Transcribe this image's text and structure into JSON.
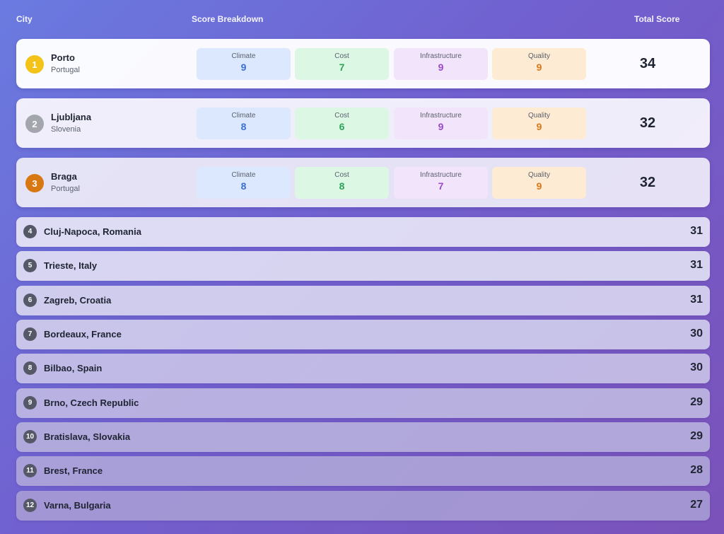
{
  "header": {
    "city": "City",
    "breakdown": "Score Breakdown",
    "total": "Total Score"
  },
  "colors": {
    "gold": "#f3c319",
    "silver": "#a3a6ad",
    "bronze": "#d87813",
    "rank_badge": "#545867"
  },
  "top": [
    {
      "rank": "1",
      "city": "Porto",
      "country": "Portugal",
      "climate_label": "Climate",
      "climate": "9",
      "cost_label": "Cost",
      "cost": "7",
      "infra_label": "Infrastructure",
      "infra": "9",
      "quality_label": "Quality",
      "quality": "9",
      "total": "34"
    },
    {
      "rank": "2",
      "city": "Ljubljana",
      "country": "Slovenia",
      "climate_label": "Climate",
      "climate": "8",
      "cost_label": "Cost",
      "cost": "6",
      "infra_label": "Infrastructure",
      "infra": "9",
      "quality_label": "Quality",
      "quality": "9",
      "total": "32"
    },
    {
      "rank": "3",
      "city": "Braga",
      "country": "Portugal",
      "climate_label": "Climate",
      "climate": "8",
      "cost_label": "Cost",
      "cost": "8",
      "infra_label": "Infrastructure",
      "infra": "7",
      "quality_label": "Quality",
      "quality": "9",
      "total": "32"
    }
  ],
  "rows": [
    {
      "rank": "4",
      "name": "Cluj-Napoca, Romania",
      "total": "31"
    },
    {
      "rank": "5",
      "name": "Trieste, Italy",
      "total": "31"
    },
    {
      "rank": "6",
      "name": "Zagreb, Croatia",
      "total": "31"
    },
    {
      "rank": "7",
      "name": "Bordeaux, France",
      "total": "30"
    },
    {
      "rank": "8",
      "name": "Bilbao, Spain",
      "total": "30"
    },
    {
      "rank": "9",
      "name": "Brno, Czech Republic",
      "total": "29"
    },
    {
      "rank": "10",
      "name": "Bratislava, Slovakia",
      "total": "29"
    },
    {
      "rank": "11",
      "name": "Brest, France",
      "total": "28"
    },
    {
      "rank": "12",
      "name": "Varna, Bulgaria",
      "total": "27"
    }
  ]
}
